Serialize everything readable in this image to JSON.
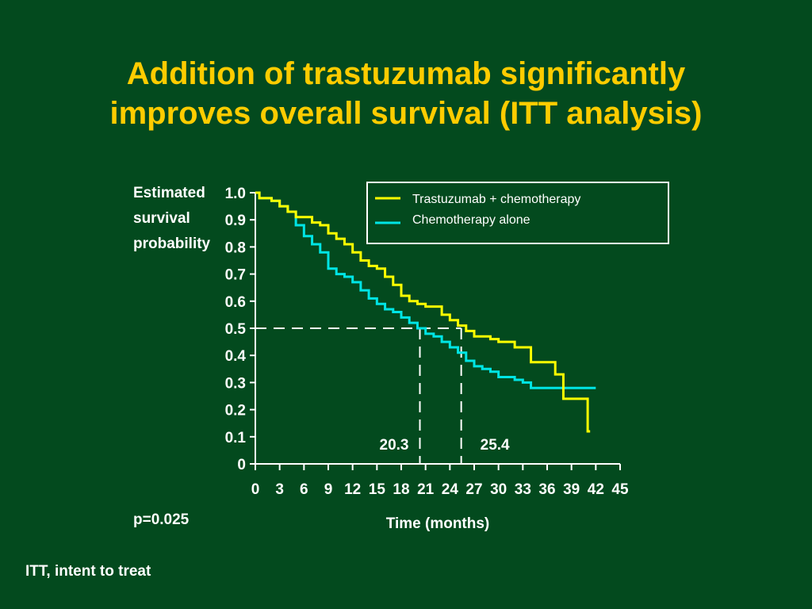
{
  "title": {
    "line1": "Addition of trastuzumab significantly",
    "line2": "improves overall survival (ITT analysis)"
  },
  "pvalue": "p=0.025",
  "footnote": "ITT, intent to treat",
  "colors": {
    "background": "#034a1e",
    "title": "#ffcc00",
    "trastuzumab": "#ffff00",
    "chemo": "#00e5e5",
    "text": "#ffffff"
  },
  "chart_data": {
    "type": "line",
    "title": "",
    "xlabel": "Time (months)",
    "ylabel_lines": [
      "Estimated",
      "survival",
      "probability"
    ],
    "xlim": [
      0,
      45
    ],
    "ylim": [
      0,
      1.0
    ],
    "x_ticks": [
      "0",
      "3",
      "6",
      "9",
      "12",
      "15",
      "18",
      "21",
      "24",
      "27",
      "30",
      "33",
      "36",
      "39",
      "42",
      "45"
    ],
    "y_ticks": [
      "0",
      "0.1",
      "0.2",
      "0.3",
      "0.4",
      "0.5",
      "0.6",
      "0.7",
      "0.8",
      "0.9",
      "1.0"
    ],
    "grid": false,
    "legend_position": "top-right",
    "series": [
      {
        "name": "Trastuzumab + chemotherapy",
        "color": "#ffff00",
        "points": [
          [
            0,
            1.0
          ],
          [
            0.5,
            0.98
          ],
          [
            2,
            0.97
          ],
          [
            3,
            0.95
          ],
          [
            4,
            0.93
          ],
          [
            5,
            0.91
          ],
          [
            6,
            0.91
          ],
          [
            7,
            0.89
          ],
          [
            8,
            0.88
          ],
          [
            9,
            0.85
          ],
          [
            10,
            0.83
          ],
          [
            11,
            0.81
          ],
          [
            12,
            0.78
          ],
          [
            13,
            0.75
          ],
          [
            14,
            0.73
          ],
          [
            15,
            0.72
          ],
          [
            16,
            0.69
          ],
          [
            17,
            0.66
          ],
          [
            18,
            0.62
          ],
          [
            19,
            0.6
          ],
          [
            20,
            0.59
          ],
          [
            21,
            0.58
          ],
          [
            22,
            0.58
          ],
          [
            23,
            0.55
          ],
          [
            24,
            0.53
          ],
          [
            25,
            0.51
          ],
          [
            26,
            0.49
          ],
          [
            27,
            0.47
          ],
          [
            29,
            0.46
          ],
          [
            30,
            0.45
          ],
          [
            31,
            0.45
          ],
          [
            32,
            0.43
          ],
          [
            34,
            0.43
          ],
          [
            34,
            0.375
          ],
          [
            37,
            0.375
          ],
          [
            37,
            0.33
          ],
          [
            38,
            0.33
          ],
          [
            38,
            0.24
          ],
          [
            41,
            0.24
          ],
          [
            41,
            0.12
          ],
          [
            41.3,
            0.12
          ]
        ]
      },
      {
        "name": "Chemotherapy alone",
        "color": "#00e5e5",
        "points": [
          [
            0,
            1.0
          ],
          [
            0.5,
            0.98
          ],
          [
            2,
            0.97
          ],
          [
            3,
            0.95
          ],
          [
            4,
            0.93
          ],
          [
            5,
            0.88
          ],
          [
            6,
            0.84
          ],
          [
            7,
            0.81
          ],
          [
            8,
            0.78
          ],
          [
            9,
            0.72
          ],
          [
            10,
            0.7
          ],
          [
            11,
            0.69
          ],
          [
            12,
            0.67
          ],
          [
            13,
            0.64
          ],
          [
            14,
            0.61
          ],
          [
            15,
            0.59
          ],
          [
            16,
            0.57
          ],
          [
            17,
            0.56
          ],
          [
            18,
            0.54
          ],
          [
            19,
            0.52
          ],
          [
            20,
            0.5
          ],
          [
            21,
            0.48
          ],
          [
            22,
            0.47
          ],
          [
            23,
            0.45
          ],
          [
            24,
            0.43
          ],
          [
            25,
            0.41
          ],
          [
            26,
            0.38
          ],
          [
            27,
            0.36
          ],
          [
            28,
            0.35
          ],
          [
            29,
            0.34
          ],
          [
            30,
            0.32
          ],
          [
            31,
            0.32
          ],
          [
            32,
            0.31
          ],
          [
            33,
            0.3
          ],
          [
            34,
            0.28
          ],
          [
            36,
            0.28
          ],
          [
            38,
            0.28
          ],
          [
            42,
            0.28
          ]
        ]
      }
    ],
    "median_markers": [
      {
        "label": "20.3",
        "x": 20.3,
        "y": 0.5
      },
      {
        "label": "25.4",
        "x": 25.4,
        "y": 0.5
      }
    ]
  }
}
